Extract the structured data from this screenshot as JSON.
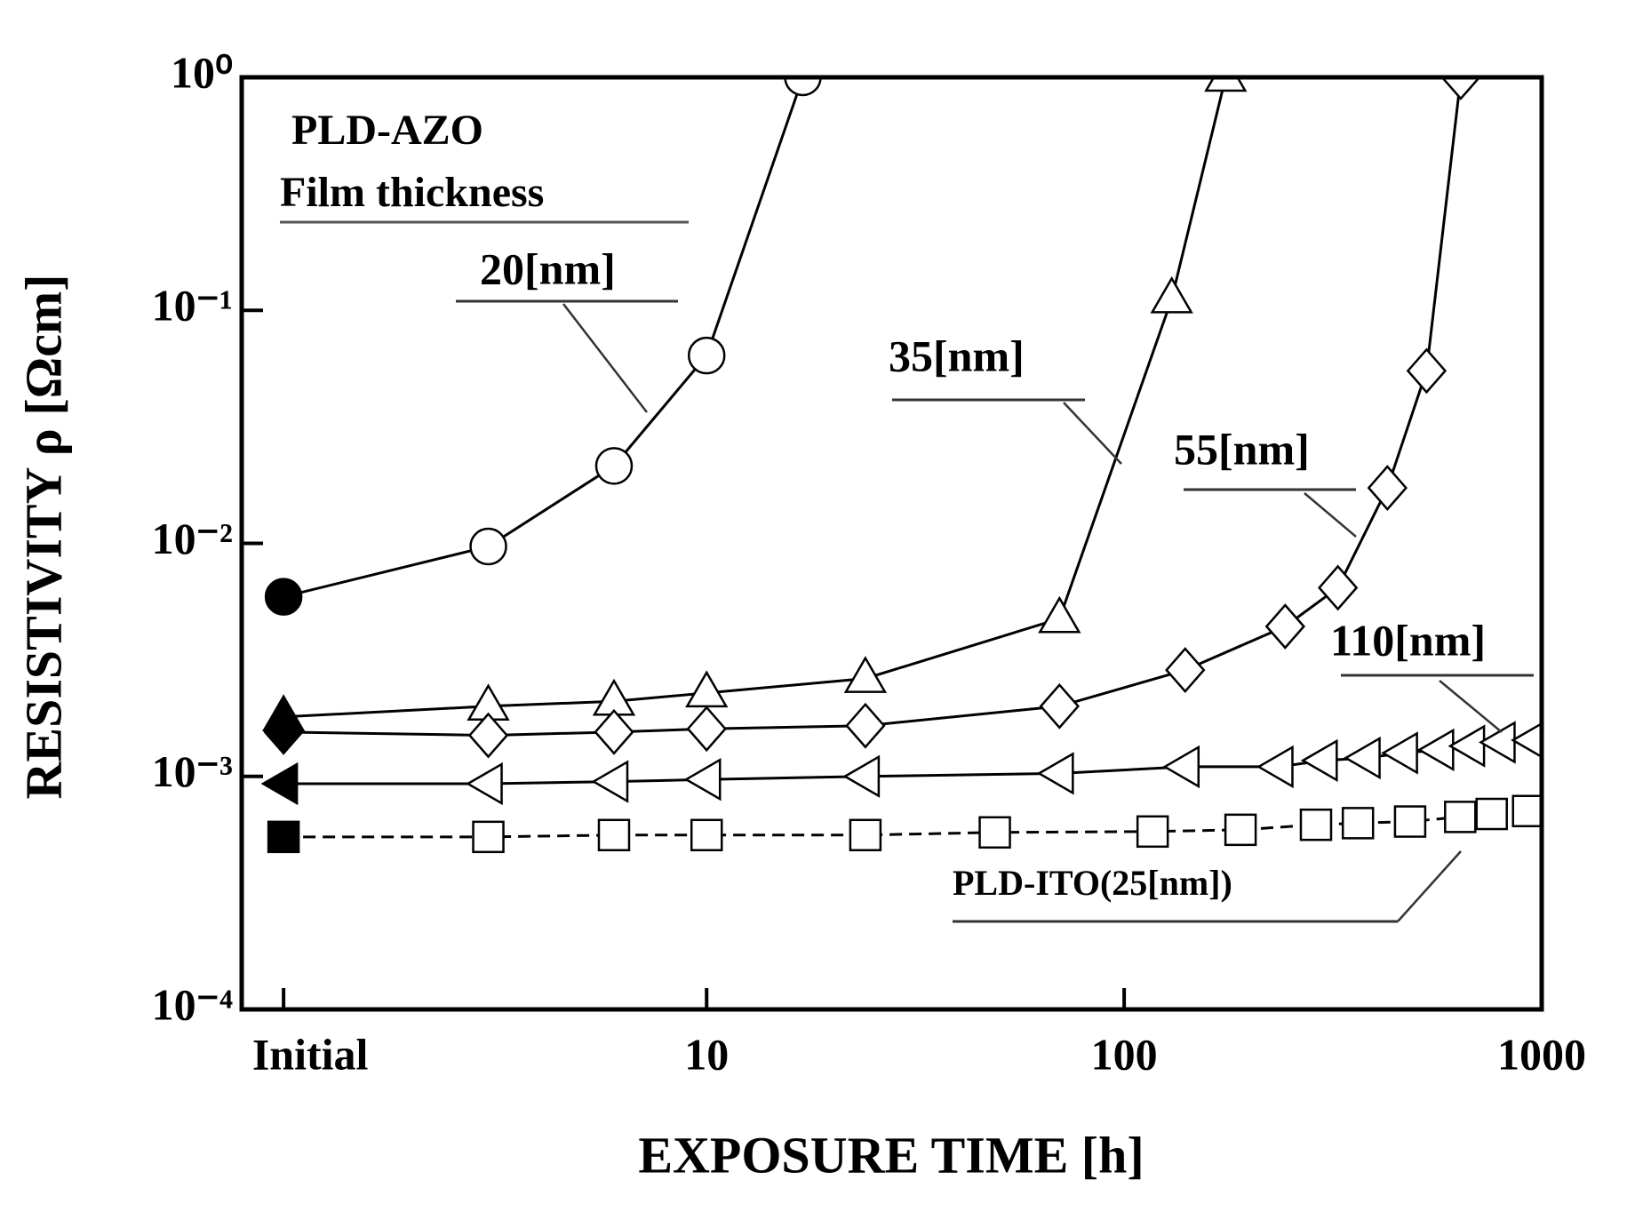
{
  "chart_data": {
    "type": "line",
    "xlabel": "EXPOSURE TIME [h]",
    "ylabel": "RESISTIVITY ρ [Ωcm]",
    "annotations": [
      "PLD-AZO",
      "Film thickness"
    ],
    "xscale": "log",
    "yscale": "log",
    "xlim": [
      0.77,
      1000
    ],
    "ylim": [
      0.0001,
      1
    ],
    "xticks": [
      {
        "value": 0.97,
        "label": "Initial"
      },
      10,
      100,
      1000
    ],
    "yticks": [
      {
        "value": 0.0001,
        "label": "10⁻⁴"
      },
      {
        "value": 0.001,
        "label": "10⁻³"
      },
      {
        "value": 0.01,
        "label": "10⁻²"
      },
      {
        "value": 0.1,
        "label": "10⁻¹"
      },
      {
        "value": 1,
        "label": "10⁰"
      }
    ],
    "grid": false,
    "filled_first": true,
    "series": [
      {
        "name": "20[nm]",
        "color": "#000000",
        "marker": "circle",
        "linestyle": "solid",
        "x": [
          0.97,
          3,
          6,
          10,
          17
        ],
        "values": [
          0.0059,
          0.0097,
          0.0215,
          0.064,
          1
        ]
      },
      {
        "name": "35[nm]",
        "color": "#000000",
        "marker": "triangle-up",
        "linestyle": "solid",
        "x": [
          0.97,
          3,
          6,
          10,
          24,
          70,
          130,
          175
        ],
        "values": [
          0.0018,
          0.002,
          0.0021,
          0.00228,
          0.00263,
          0.00475,
          0.112,
          1
        ]
      },
      {
        "name": "55[nm]",
        "color": "#000000",
        "marker": "diamond",
        "linestyle": "solid",
        "x": [
          0.97,
          3,
          6,
          10,
          24,
          70,
          140,
          243,
          325,
          427,
          530,
          640
        ],
        "values": [
          0.00155,
          0.0015,
          0.00155,
          0.0016,
          0.00165,
          0.002,
          0.00286,
          0.0044,
          0.00645,
          0.0173,
          0.055,
          1
        ]
      },
      {
        "name": "110[nm]",
        "color": "#000000",
        "marker": "triangle-left",
        "linestyle": "solid",
        "x": [
          0.97,
          3,
          6,
          10,
          24,
          70,
          140,
          235,
          300,
          380,
          467,
          570,
          676,
          800,
          955
        ],
        "values": [
          0.00093,
          0.00093,
          0.00095,
          0.00097,
          0.001,
          0.00103,
          0.0011,
          0.0011,
          0.00117,
          0.0012,
          0.00126,
          0.0013,
          0.00135,
          0.0014,
          0.00143
        ]
      },
      {
        "name": "PLD-ITO(25[nm])",
        "color": "#000000",
        "marker": "square",
        "linestyle": "dashed",
        "x": [
          0.97,
          3,
          6,
          10,
          24,
          49,
          117,
          190,
          288,
          363,
          484,
          638,
          759,
          928
        ],
        "values": [
          0.00055,
          0.00055,
          0.00056,
          0.00056,
          0.00056,
          0.000575,
          0.00058,
          0.00059,
          0.00062,
          0.00063,
          0.00064,
          0.00067,
          0.00069,
          0.00071
        ]
      }
    ]
  }
}
